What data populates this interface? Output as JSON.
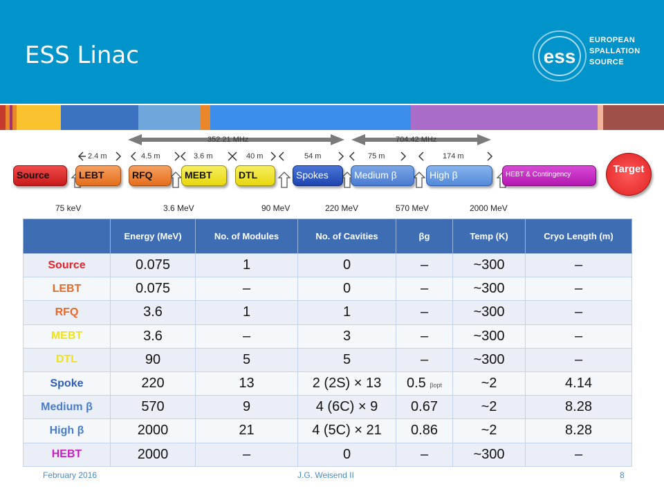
{
  "header": {
    "title": "ESS Linac",
    "logo_lines": [
      "EUROPEAN",
      "SPALLATION",
      "SOURCE"
    ],
    "bg_color": "#0094CA"
  },
  "colorbar": [
    {
      "color": "#C63A2E",
      "w": 8
    },
    {
      "color": "#E9872A",
      "w": 6
    },
    {
      "color": "#A0356E",
      "w": 4
    },
    {
      "color": "#E9872A",
      "w": 6
    },
    {
      "color": "#F9C22E",
      "w": 64
    },
    {
      "color": "#3B73C0",
      "w": 112
    },
    {
      "color": "#6FA7DD",
      "w": 90
    },
    {
      "color": "#E9872A",
      "w": 14
    },
    {
      "color": "#3B8FEA",
      "w": 290
    },
    {
      "color": "#A96CC8",
      "w": 270
    },
    {
      "color": "#F1B49A",
      "w": 8
    },
    {
      "color": "#9F5047",
      "w": 88
    }
  ],
  "diagram": {
    "freq1": "352.21 MHz",
    "freq2": "704.42 MHz",
    "lengths": [
      "2.4 m",
      "4.5 m",
      "3.6 m",
      "40 m",
      "54 m",
      "75 m",
      "174 m"
    ],
    "blocks": {
      "source": "Source",
      "lebt": "LEBT",
      "rfq": "RFQ",
      "mebt": "MEBT",
      "dtl": "DTL",
      "spokes": "Spokes",
      "medium": "Medium β",
      "high": "High β",
      "hebt": "HEBT & Contingency",
      "target": "Target"
    },
    "energies": [
      "75 keV",
      "3.6 MeV",
      "90 MeV",
      "220 MeV",
      "570 MeV",
      "2000 MeV"
    ]
  },
  "table": {
    "headers": [
      "",
      "Energy (MeV)",
      "No. of Modules",
      "No. of Cavities",
      "βg",
      "Temp (K)",
      "Cryo Length (m)"
    ],
    "rows": [
      {
        "name": "Source",
        "color": "#E8232A",
        "cells": [
          "0.075",
          "1",
          "0",
          "–",
          "~300",
          "–"
        ]
      },
      {
        "name": "LEBT",
        "color": "#E8682A",
        "cells": [
          "0.075",
          "–",
          "0",
          "–",
          "~300",
          "–"
        ]
      },
      {
        "name": "RFQ",
        "color": "#E8682A",
        "cells": [
          "3.6",
          "1",
          "1",
          "–",
          "~300",
          "–"
        ]
      },
      {
        "name": "MEBT",
        "color": "#EFE21B",
        "cells": [
          "3.6",
          "–",
          "3",
          "–",
          "~300",
          "–"
        ]
      },
      {
        "name": "DTL",
        "color": "#EFE21B",
        "cells": [
          "90",
          "5",
          "5",
          "–",
          "~300",
          "–"
        ]
      },
      {
        "name": "Spoke",
        "color": "#2F5DB8",
        "cells": [
          "220",
          "13",
          "2 (2S) × 13",
          "0.5",
          "~2",
          "4.14"
        ],
        "beta_sub": "βopt"
      },
      {
        "name": "Medium β",
        "color": "#4A7CC6",
        "cells": [
          "570",
          "9",
          "4 (6C) × 9",
          "0.67",
          "~2",
          "8.28"
        ]
      },
      {
        "name": "High β",
        "color": "#4A7CC6",
        "cells": [
          "2000",
          "21",
          "4 (5C) × 21",
          "0.86",
          "~2",
          "8.28"
        ]
      },
      {
        "name": "HEBT",
        "color": "#C81FC4",
        "cells": [
          "2000",
          "–",
          "0",
          "–",
          "~300",
          "–"
        ]
      }
    ]
  },
  "footer": {
    "date": "February 2016",
    "author": "J.G. Weisend II",
    "page": "8"
  }
}
